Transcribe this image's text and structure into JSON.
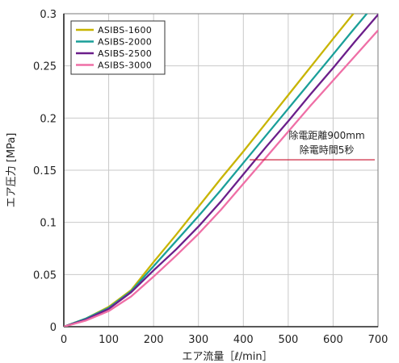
{
  "chart_data": {
    "type": "line",
    "xlabel": "エア流量［ℓ/min］",
    "ylabel": "エア圧力 [MPa]",
    "xlim": [
      0,
      700
    ],
    "ylim": [
      0,
      0.3
    ],
    "x_ticks": [
      "0",
      "100",
      "200",
      "300",
      "400",
      "500",
      "600",
      "700"
    ],
    "y_ticks": [
      "0",
      "0.05",
      "0.1",
      "0.15",
      "0.2",
      "0.25",
      "0.3"
    ],
    "grid": true,
    "legend_position": "top-left",
    "series": [
      {
        "name": "ASIBS-1600",
        "color": "#c8b400",
        "points": [
          [
            0,
            0
          ],
          [
            50,
            0.008
          ],
          [
            100,
            0.019
          ],
          [
            150,
            0.035
          ],
          [
            200,
            0.062
          ],
          [
            250,
            0.088
          ],
          [
            300,
            0.115
          ],
          [
            350,
            0.142
          ],
          [
            400,
            0.168
          ],
          [
            450,
            0.195
          ],
          [
            500,
            0.222
          ],
          [
            550,
            0.249
          ],
          [
            600,
            0.276
          ],
          [
            645,
            0.3
          ]
        ]
      },
      {
        "name": "ASIBS-2000",
        "color": "#1a9f99",
        "points": [
          [
            0,
            0
          ],
          [
            50,
            0.008
          ],
          [
            100,
            0.018
          ],
          [
            150,
            0.034
          ],
          [
            200,
            0.058
          ],
          [
            250,
            0.082
          ],
          [
            300,
            0.106
          ],
          [
            350,
            0.131
          ],
          [
            400,
            0.157
          ],
          [
            450,
            0.183
          ],
          [
            500,
            0.209
          ],
          [
            550,
            0.235
          ],
          [
            600,
            0.261
          ],
          [
            640,
            0.282
          ],
          [
            675,
            0.3
          ]
        ]
      },
      {
        "name": "ASIBS-2500",
        "color": "#6b1e8a",
        "points": [
          [
            0,
            0
          ],
          [
            50,
            0.007
          ],
          [
            100,
            0.017
          ],
          [
            150,
            0.033
          ],
          [
            200,
            0.054
          ],
          [
            250,
            0.074
          ],
          [
            300,
            0.096
          ],
          [
            350,
            0.12
          ],
          [
            400,
            0.146
          ],
          [
            450,
            0.172
          ],
          [
            500,
            0.197
          ],
          [
            550,
            0.223
          ],
          [
            600,
            0.248
          ],
          [
            650,
            0.274
          ],
          [
            700,
            0.299
          ]
        ]
      },
      {
        "name": "ASIBS-3000",
        "color": "#ef6fa6",
        "points": [
          [
            0,
            0
          ],
          [
            50,
            0.006
          ],
          [
            100,
            0.015
          ],
          [
            150,
            0.029
          ],
          [
            200,
            0.048
          ],
          [
            250,
            0.068
          ],
          [
            300,
            0.089
          ],
          [
            350,
            0.112
          ],
          [
            400,
            0.137
          ],
          [
            450,
            0.162
          ],
          [
            500,
            0.187
          ],
          [
            550,
            0.212
          ],
          [
            600,
            0.236
          ],
          [
            650,
            0.26
          ],
          [
            700,
            0.284
          ]
        ]
      }
    ],
    "annotation": {
      "line1": "除電距離900mm",
      "line2": "除電時間5秒",
      "color": "#c8102e",
      "x_start": 450,
      "x_end": 700,
      "y": 0.16
    }
  }
}
